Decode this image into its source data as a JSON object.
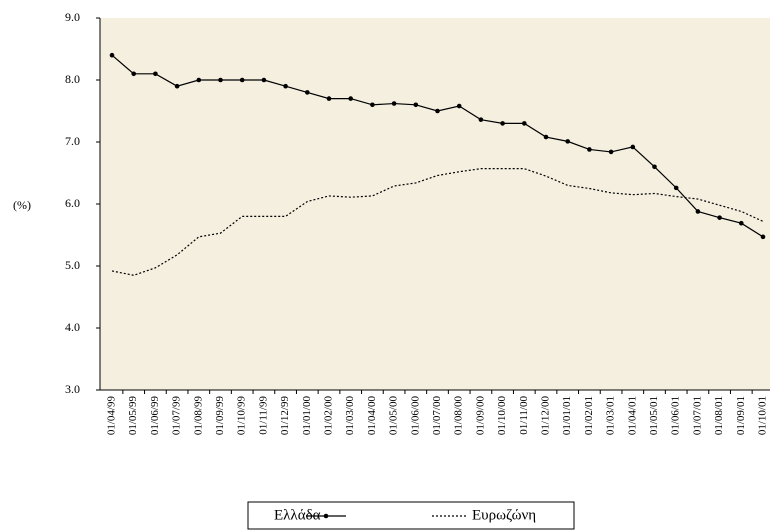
{
  "chart_data": {
    "type": "line",
    "y_label": "(%)",
    "categories": [
      "01/04/99",
      "01/05/99",
      "01/06/99",
      "01/07/99",
      "01/08/99",
      "01/09/99",
      "01/10/99",
      "01/11/99",
      "01/12/99",
      "01/01/00",
      "01/02/00",
      "01/03/00",
      "01/04/00",
      "01/05/00",
      "01/06/00",
      "01/07/00",
      "01/08/00",
      "01/09/00",
      "01/10/00",
      "01/11/00",
      "01/12/00",
      "01/01/01",
      "01/02/01",
      "01/03/01",
      "01/04/01",
      "01/05/01",
      "01/06/01",
      "01/07/01",
      "01/08/01",
      "01/09/01",
      "01/10/01"
    ],
    "series": [
      {
        "name": "Ελλάδα",
        "color": "#000000",
        "dash": "solid",
        "marker": "circle",
        "values": [
          8.4,
          8.1,
          8.1,
          7.9,
          8.0,
          8.0,
          8.0,
          8.0,
          7.9,
          7.8,
          7.7,
          7.7,
          7.6,
          7.62,
          7.6,
          7.5,
          7.58,
          7.36,
          7.3,
          7.3,
          7.08,
          7.01,
          6.88,
          6.84,
          6.92,
          6.6,
          6.26,
          5.88,
          5.78,
          5.69,
          5.47
        ]
      },
      {
        "name": "Ευρωζώνη",
        "color": "#000000",
        "dash": "dotted",
        "marker": "none",
        "values": [
          4.92,
          4.85,
          4.97,
          5.18,
          5.47,
          5.53,
          5.8,
          5.8,
          5.8,
          6.04,
          6.13,
          6.11,
          6.13,
          6.29,
          6.34,
          6.46,
          6.52,
          6.57,
          6.57,
          6.57,
          6.45,
          6.3,
          6.25,
          6.18,
          6.15,
          6.17,
          6.12,
          6.08,
          5.98,
          5.88,
          5.72
        ]
      }
    ],
    "ylim": [
      3,
      9
    ],
    "yticks": [
      {
        "value": 3,
        "label": "3.0"
      },
      {
        "value": 4,
        "label": "4.0"
      },
      {
        "value": 5,
        "label": "5.0"
      },
      {
        "value": 6,
        "label": "6.0"
      },
      {
        "value": 7,
        "label": "7.0"
      },
      {
        "value": 8,
        "label": "8.0"
      },
      {
        "value": 9,
        "label": "9.0"
      }
    ],
    "plot_background": "#f4efdf"
  }
}
